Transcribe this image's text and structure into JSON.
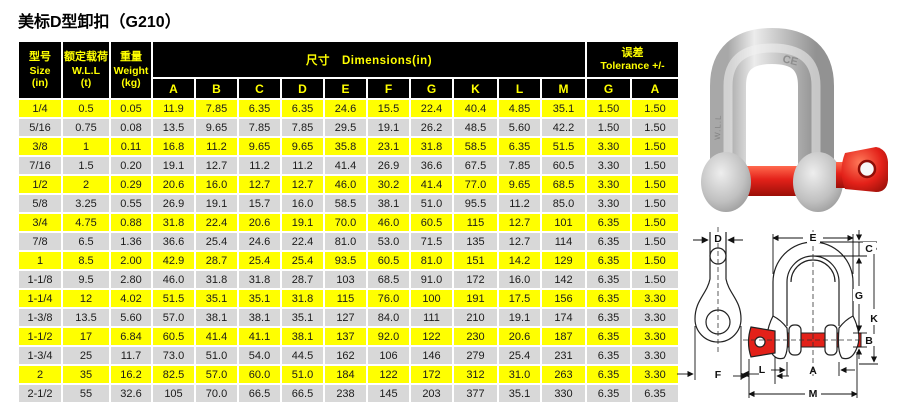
{
  "title": "美标D型卸扣（G210）",
  "colors": {
    "header_bg": "#000000",
    "header_text": "#ffff00",
    "row_yellow": "#ffff00",
    "row_gray": "#d8d8d8",
    "pin_red": "#e32119",
    "metal_gray": "#c6c6c6"
  },
  "table": {
    "header": {
      "size_zh": "型号",
      "size_en": "Size",
      "size_unit": "(in)",
      "wll_zh": "额定载荷",
      "wll_en": "W.L.L",
      "wll_unit": "(t)",
      "weight_zh": "重量",
      "weight_en": "Weight",
      "weight_unit": "(kg)",
      "dims_label": "尺寸　Dimensions(in)",
      "tol_zh": "误差",
      "tol_en": "Tolerance +/-",
      "dim_columns": [
        "A",
        "B",
        "C",
        "D",
        "E",
        "F",
        "G",
        "K",
        "L",
        "M"
      ],
      "tol_columns": [
        "G",
        "A"
      ]
    },
    "rows": [
      [
        "1/4",
        "0.5",
        "0.05",
        "11.9",
        "7.85",
        "6.35",
        "6.35",
        "24.6",
        "15.5",
        "22.4",
        "40.4",
        "4.85",
        "35.1",
        "1.50",
        "1.50"
      ],
      [
        "5/16",
        "0.75",
        "0.08",
        "13.5",
        "9.65",
        "7.85",
        "7.85",
        "29.5",
        "19.1",
        "26.2",
        "48.5",
        "5.60",
        "42.2",
        "1.50",
        "1.50"
      ],
      [
        "3/8",
        "1",
        "0.11",
        "16.8",
        "11.2",
        "9.65",
        "9.65",
        "35.8",
        "23.1",
        "31.8",
        "58.5",
        "6.35",
        "51.5",
        "3.30",
        "1.50"
      ],
      [
        "7/16",
        "1.5",
        "0.20",
        "19.1",
        "12.7",
        "11.2",
        "11.2",
        "41.4",
        "26.9",
        "36.6",
        "67.5",
        "7.85",
        "60.5",
        "3.30",
        "1.50"
      ],
      [
        "1/2",
        "2",
        "0.29",
        "20.6",
        "16.0",
        "12.7",
        "12.7",
        "46.0",
        "30.2",
        "41.4",
        "77.0",
        "9.65",
        "68.5",
        "3.30",
        "1.50"
      ],
      [
        "5/8",
        "3.25",
        "0.55",
        "26.9",
        "19.1",
        "15.7",
        "16.0",
        "58.5",
        "38.1",
        "51.0",
        "95.5",
        "11.2",
        "85.0",
        "3.30",
        "1.50"
      ],
      [
        "3/4",
        "4.75",
        "0.88",
        "31.8",
        "22.4",
        "20.6",
        "19.1",
        "70.0",
        "46.0",
        "60.5",
        "115",
        "12.7",
        "101",
        "6.35",
        "1.50"
      ],
      [
        "7/8",
        "6.5",
        "1.36",
        "36.6",
        "25.4",
        "24.6",
        "22.4",
        "81.0",
        "53.0",
        "71.5",
        "135",
        "12.7",
        "114",
        "6.35",
        "1.50"
      ],
      [
        "1",
        "8.5",
        "2.00",
        "42.9",
        "28.7",
        "25.4",
        "25.4",
        "93.5",
        "60.5",
        "81.0",
        "151",
        "14.2",
        "129",
        "6.35",
        "1.50"
      ],
      [
        "1-1/8",
        "9.5",
        "2.80",
        "46.0",
        "31.8",
        "31.8",
        "28.7",
        "103",
        "68.5",
        "91.0",
        "172",
        "16.0",
        "142",
        "6.35",
        "1.50"
      ],
      [
        "1-1/4",
        "12",
        "4.02",
        "51.5",
        "35.1",
        "35.1",
        "31.8",
        "115",
        "76.0",
        "100",
        "191",
        "17.5",
        "156",
        "6.35",
        "3.30"
      ],
      [
        "1-3/8",
        "13.5",
        "5.60",
        "57.0",
        "38.1",
        "38.1",
        "35.1",
        "127",
        "84.0",
        "111",
        "210",
        "19.1",
        "174",
        "6.35",
        "3.30"
      ],
      [
        "1-1/2",
        "17",
        "6.84",
        "60.5",
        "41.4",
        "41.1",
        "38.1",
        "137",
        "92.0",
        "122",
        "230",
        "20.6",
        "187",
        "6.35",
        "3.30"
      ],
      [
        "1-3/4",
        "25",
        "11.7",
        "73.0",
        "51.0",
        "54.0",
        "44.5",
        "162",
        "106",
        "146",
        "279",
        "25.4",
        "231",
        "6.35",
        "3.30"
      ],
      [
        "2",
        "35",
        "16.2",
        "82.5",
        "57.0",
        "60.0",
        "51.0",
        "184",
        "122",
        "172",
        "312",
        "31.0",
        "263",
        "6.35",
        "3.30"
      ],
      [
        "2-1/2",
        "55",
        "32.6",
        "105",
        "70.0",
        "66.5",
        "66.5",
        "238",
        "145",
        "203",
        "377",
        "35.1",
        "330",
        "6.35",
        "6.35"
      ]
    ]
  },
  "photo": {
    "body_mark": "CE",
    "leg_stamp": "W.L.L"
  },
  "diagram": {
    "labels": {
      "D": "D",
      "F": "F",
      "E": "E",
      "C": "C",
      "G": "G",
      "K": "K",
      "B": "B",
      "A": "A",
      "L": "L",
      "M": "M"
    }
  }
}
